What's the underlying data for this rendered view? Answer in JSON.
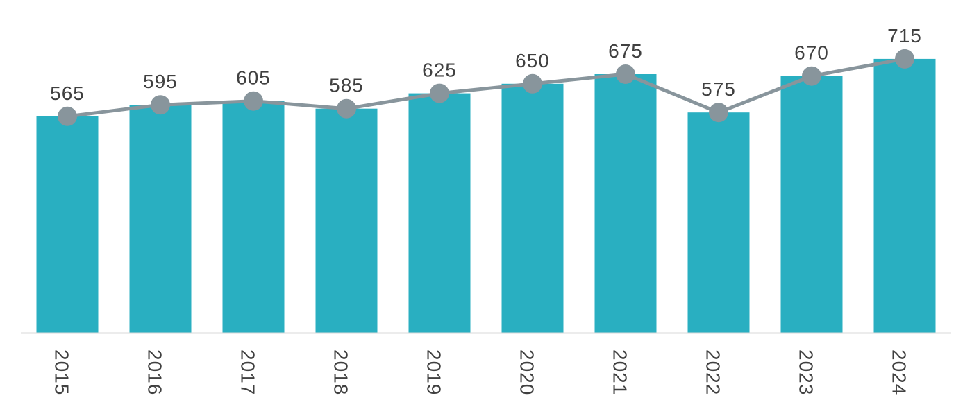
{
  "chart_data": {
    "type": "bar",
    "categories": [
      "2015",
      "2016",
      "2017",
      "2018",
      "2019",
      "2020",
      "2021",
      "2022",
      "2023",
      "2024"
    ],
    "series": [
      {
        "type": "bar",
        "values": [
          565,
          595,
          605,
          585,
          625,
          650,
          675,
          575,
          670,
          715
        ]
      },
      {
        "type": "line",
        "values": [
          565,
          595,
          605,
          585,
          625,
          650,
          675,
          575,
          670,
          715
        ]
      }
    ],
    "data_labels": [
      "565",
      "595",
      "605",
      "585",
      "625",
      "650",
      "675",
      "575",
      "670",
      "715"
    ],
    "ylim": [
      0,
      760
    ],
    "x_tick_rotation": "vertical",
    "grid": false,
    "legend": "none",
    "colors": {
      "bar": "#29AFC1",
      "line": "#88959C",
      "axis": "#D9D9D9",
      "text": "#404040"
    }
  }
}
